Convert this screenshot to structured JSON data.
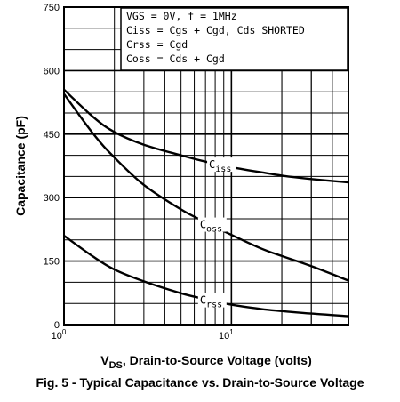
{
  "chart_data": {
    "type": "line",
    "caption": "Fig. 5 - Typical Capacitance vs. Drain-to-Source Voltage",
    "xlabel": "V_DS, Drain-to-Source Voltage (volts)",
    "xlabel_parts": {
      "prefix": "V",
      "subscript": "DS",
      "suffix": ", Drain-to-Source Voltage (volts)"
    },
    "ylabel": "Capacitance (pF)",
    "xscale": "log",
    "xlim": [
      1,
      50
    ],
    "ylim": [
      0,
      750
    ],
    "yticks": [
      0,
      150,
      300,
      450,
      600,
      750
    ],
    "xticks": [
      {
        "value": 1,
        "base": "10",
        "exp": "0"
      },
      {
        "value": 10,
        "base": "10",
        "exp": "1"
      }
    ],
    "grid": true,
    "legend_lines": [
      "VGS = 0V,  f = 1MHz",
      "Ciss = Cgs + Cgd,  Cds SHORTED",
      "Crss = Cgd",
      "Coss = Cds + Cgd"
    ],
    "series": [
      {
        "name": "Ciss",
        "x": [
          1,
          1.5,
          2,
          3,
          5,
          7,
          10,
          15,
          20,
          30,
          50
        ],
        "y": [
          555,
          490,
          455,
          425,
          400,
          385,
          372,
          360,
          352,
          344,
          336
        ]
      },
      {
        "name": "Coss",
        "x": [
          1,
          1.5,
          2,
          3,
          5,
          7,
          10,
          15,
          20,
          30,
          50
        ],
        "y": [
          545,
          450,
          395,
          330,
          272,
          242,
          212,
          180,
          162,
          138,
          104
        ]
      },
      {
        "name": "Crss",
        "x": [
          1,
          1.5,
          2,
          3,
          5,
          7,
          10,
          15,
          20,
          30,
          50
        ],
        "y": [
          210,
          160,
          130,
          102,
          74,
          60,
          47,
          37,
          32,
          26,
          20
        ]
      }
    ]
  }
}
